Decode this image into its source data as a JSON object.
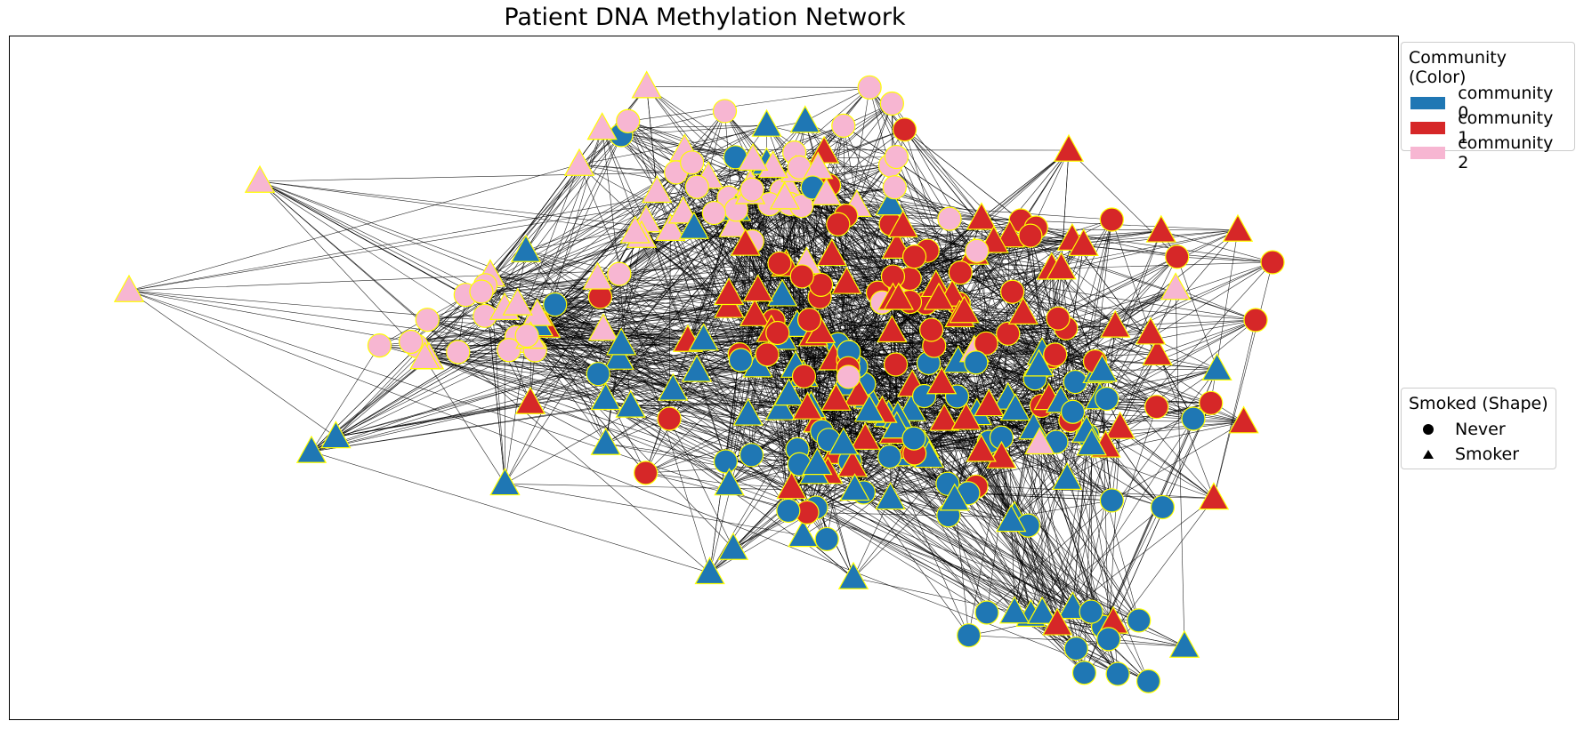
{
  "figure": {
    "title": "Patient DNA Methylation Network"
  },
  "legend_community": {
    "title": "Community (Color)",
    "items": [
      {
        "label": "community 0",
        "color": "#1f77b4"
      },
      {
        "label": "community 1",
        "color": "#d62728"
      },
      {
        "label": "community 2",
        "color": "#f7b6d2"
      }
    ]
  },
  "legend_shape": {
    "title": "Smoked (Shape)",
    "items": [
      {
        "label": "Never",
        "shape": "circle"
      },
      {
        "label": "Smoker",
        "shape": "triangle"
      }
    ]
  },
  "node_style": {
    "edge_color": "#000000",
    "outline_color": "#ffff00"
  },
  "chart_data": {
    "type": "network",
    "title": "Patient DNA Methylation Network",
    "communities": [
      "community 0",
      "community 1",
      "community 2"
    ],
    "shapes": {
      "circle": "Never",
      "triangle": "Smoker"
    },
    "edges_drawn": "dense, mostly within clusters",
    "nodes": [
      {
        "community": 2,
        "shape": "triangle",
        "x": 0.179,
        "y": 0.762
      },
      {
        "community": 2,
        "shape": "triangle",
        "x": 0.085,
        "y": 0.583
      },
      {
        "community": 0,
        "shape": "triangle",
        "x": 0.217,
        "y": 0.364
      },
      {
        "community": 0,
        "shape": "triangle",
        "x": 0.378,
        "y": 0.66
      },
      {
        "community": 2,
        "shape": "triangle",
        "x": 0.412,
        "y": 0.735
      },
      {
        "community": 2,
        "shape": "triangle",
        "x": 0.449,
        "y": 0.708
      },
      {
        "community": 2,
        "shape": "triangle",
        "x": 0.303,
        "y": 0.59
      },
      {
        "community": 2,
        "shape": "triangle",
        "x": 0.34,
        "y": 0.6
      },
      {
        "community": 2,
        "shape": "triangle",
        "x": 0.296,
        "y": 0.54
      },
      {
        "community": 2,
        "shape": "triangle",
        "x": 0.33,
        "y": 0.52
      },
      {
        "community": 2,
        "shape": "triangle",
        "x": 0.39,
        "y": 0.52
      },
      {
        "community": 2,
        "shape": "triangle",
        "x": 0.412,
        "y": 0.6
      },
      {
        "community": 2,
        "shape": "triangle",
        "x": 0.367,
        "y": 0.49
      },
      {
        "community": 2,
        "shape": "triangle",
        "x": 0.433,
        "y": 0.61
      },
      {
        "community": 2,
        "shape": "triangle",
        "x": 0.456,
        "y": 0.55
      },
      {
        "community": 2,
        "shape": "triangle",
        "x": 0.367,
        "y": 0.5
      },
      {
        "community": 1,
        "shape": "triangle",
        "x": 0.349,
        "y": 0.46
      },
      {
        "community": 0,
        "shape": "circle",
        "x": 0.384,
        "y": 0.41
      },
      {
        "community": 0,
        "shape": "triangle",
        "x": 0.414,
        "y": 0.37
      },
      {
        "community": 0,
        "shape": "triangle",
        "x": 0.434,
        "y": 0.4
      },
      {
        "community": 0,
        "shape": "circle",
        "x": 0.446,
        "y": 0.37
      },
      {
        "community": 0,
        "shape": "circle",
        "x": 0.478,
        "y": 0.4
      },
      {
        "community": 0,
        "shape": "triangle",
        "x": 0.437,
        "y": 0.3
      },
      {
        "community": 0,
        "shape": "triangle",
        "x": 0.485,
        "y": 0.25
      },
      {
        "community": 0,
        "shape": "triangle",
        "x": 0.541,
        "y": 0.25
      },
      {
        "community": 0,
        "shape": "triangle",
        "x": 0.562,
        "y": 0.21
      },
      {
        "community": 0,
        "shape": "triangle",
        "x": 0.617,
        "y": 0.19
      },
      {
        "community": 0,
        "shape": "circle",
        "x": 0.655,
        "y": 0.16
      },
      {
        "community": 0,
        "shape": "circle",
        "x": 0.72,
        "y": 0.24
      },
      {
        "community": 0,
        "shape": "circle",
        "x": 0.759,
        "y": 0.23
      },
      {
        "community": 0,
        "shape": "triangle",
        "x": 0.795,
        "y": 0.095
      },
      {
        "community": 0,
        "shape": "circle",
        "x": 0.827,
        "y": 0.09
      },
      {
        "community": 0,
        "shape": "triangle",
        "x": 0.846,
        "y": 0.085
      },
      {
        "community": 0,
        "shape": "triangle",
        "x": 0.826,
        "y": 0.12
      },
      {
        "community": 0,
        "shape": "triangle",
        "x": 0.77,
        "y": 0.14
      }
    ]
  }
}
